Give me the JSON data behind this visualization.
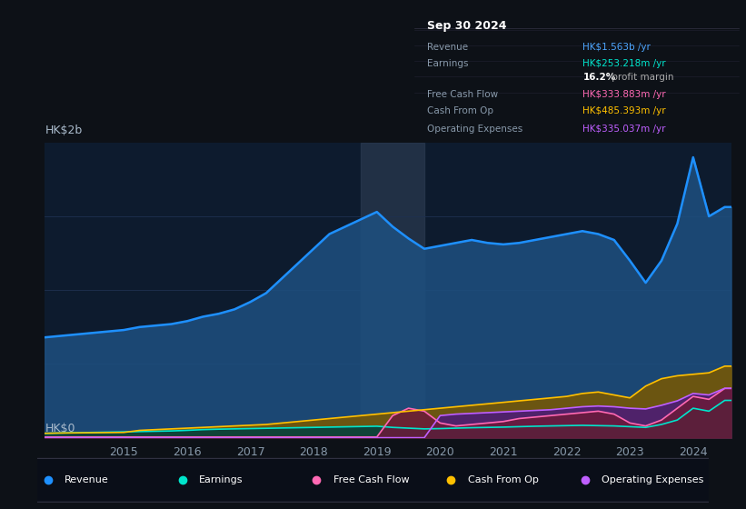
{
  "bg_color": "#0d1117",
  "plot_bg_color": "#0d1b2e",
  "grid_color": "#1e3050",
  "title_box": {
    "date": "Sep 30 2024",
    "rows": [
      {
        "label": "Revenue",
        "value": "HK$1.563b /yr",
        "value_color": "#4da6ff"
      },
      {
        "label": "Earnings",
        "value": "HK$253.218m /yr",
        "value_color": "#00e5cc"
      },
      {
        "label": "",
        "value": "16.2% profit margin",
        "value_color": "#ffffff",
        "bold_part": "16.2%"
      },
      {
        "label": "Free Cash Flow",
        "value": "HK$333.883m /yr",
        "value_color": "#ff69b4"
      },
      {
        "label": "Cash From Op",
        "value": "HK$485.393m /yr",
        "value_color": "#ffc000"
      },
      {
        "label": "Operating Expenses",
        "value": "HK$335.037m /yr",
        "value_color": "#bf5fff"
      }
    ]
  },
  "ylabel_top": "HK$2b",
  "ylabel_bottom": "HK$0",
  "x_ticks": [
    2015,
    2016,
    2017,
    2018,
    2019,
    2020,
    2021,
    2022,
    2023,
    2024
  ],
  "shade_region": [
    2018.75,
    2019.75
  ],
  "years": [
    2013.75,
    2014.0,
    2014.25,
    2014.5,
    2014.75,
    2015.0,
    2015.25,
    2015.5,
    2015.75,
    2016.0,
    2016.25,
    2016.5,
    2016.75,
    2017.0,
    2017.25,
    2017.5,
    2017.75,
    2018.0,
    2018.25,
    2018.5,
    2018.75,
    2019.0,
    2019.25,
    2019.5,
    2019.75,
    2020.0,
    2020.25,
    2020.5,
    2020.75,
    2021.0,
    2021.25,
    2021.5,
    2021.75,
    2022.0,
    2022.25,
    2022.5,
    2022.75,
    2023.0,
    2023.25,
    2023.5,
    2023.75,
    2024.0,
    2024.25,
    2024.5,
    2024.6
  ],
  "revenue": [
    680,
    690,
    700,
    710,
    720,
    730,
    750,
    760,
    770,
    790,
    820,
    840,
    870,
    920,
    980,
    1080,
    1180,
    1280,
    1380,
    1430,
    1480,
    1530,
    1430,
    1350,
    1280,
    1300,
    1320,
    1340,
    1320,
    1310,
    1320,
    1340,
    1360,
    1380,
    1400,
    1380,
    1340,
    1200,
    1050,
    1200,
    1450,
    1900,
    1500,
    1563,
    1563
  ],
  "earnings": [
    30,
    32,
    34,
    36,
    38,
    40,
    42,
    44,
    46,
    50,
    55,
    58,
    60,
    62,
    64,
    66,
    68,
    70,
    72,
    74,
    76,
    78,
    70,
    65,
    60,
    62,
    65,
    68,
    70,
    72,
    75,
    78,
    80,
    82,
    84,
    82,
    80,
    75,
    70,
    90,
    120,
    200,
    180,
    253,
    253
  ],
  "free_cash_flow": [
    5,
    5,
    5,
    5,
    5,
    5,
    5,
    5,
    5,
    5,
    5,
    5,
    5,
    5,
    5,
    5,
    5,
    5,
    5,
    5,
    5,
    5,
    150,
    200,
    180,
    100,
    80,
    90,
    100,
    110,
    130,
    140,
    150,
    160,
    170,
    180,
    160,
    100,
    80,
    120,
    200,
    280,
    260,
    334,
    334
  ],
  "cash_from_op": [
    30,
    32,
    33,
    34,
    35,
    36,
    50,
    55,
    60,
    65,
    70,
    75,
    80,
    85,
    90,
    100,
    110,
    120,
    130,
    140,
    150,
    160,
    170,
    180,
    190,
    200,
    210,
    220,
    230,
    240,
    250,
    260,
    270,
    280,
    300,
    310,
    290,
    270,
    350,
    400,
    420,
    430,
    440,
    485,
    485
  ],
  "op_expenses": [
    0,
    0,
    0,
    0,
    0,
    0,
    0,
    0,
    0,
    0,
    0,
    0,
    0,
    0,
    0,
    0,
    0,
    0,
    0,
    0,
    0,
    0,
    0,
    0,
    0,
    150,
    160,
    165,
    170,
    175,
    180,
    185,
    190,
    200,
    210,
    215,
    210,
    200,
    195,
    220,
    250,
    300,
    290,
    335,
    335
  ],
  "revenue_color": "#1e90ff",
  "revenue_fill": "#1e5080",
  "earnings_color": "#00e5cc",
  "earnings_fill": "#004040",
  "fcf_color": "#ff69b4",
  "fcf_fill": "#6b1a3a",
  "cashop_color": "#ffc000",
  "cashop_fill": "#7a5800",
  "opex_color": "#bf5fff",
  "opex_fill": "#4b1a7a",
  "legend_items": [
    {
      "label": "Revenue",
      "color": "#1e90ff"
    },
    {
      "label": "Earnings",
      "color": "#00e5cc"
    },
    {
      "label": "Free Cash Flow",
      "color": "#ff69b4"
    },
    {
      "label": "Cash From Op",
      "color": "#ffc000"
    },
    {
      "label": "Operating Expenses",
      "color": "#bf5fff"
    }
  ]
}
